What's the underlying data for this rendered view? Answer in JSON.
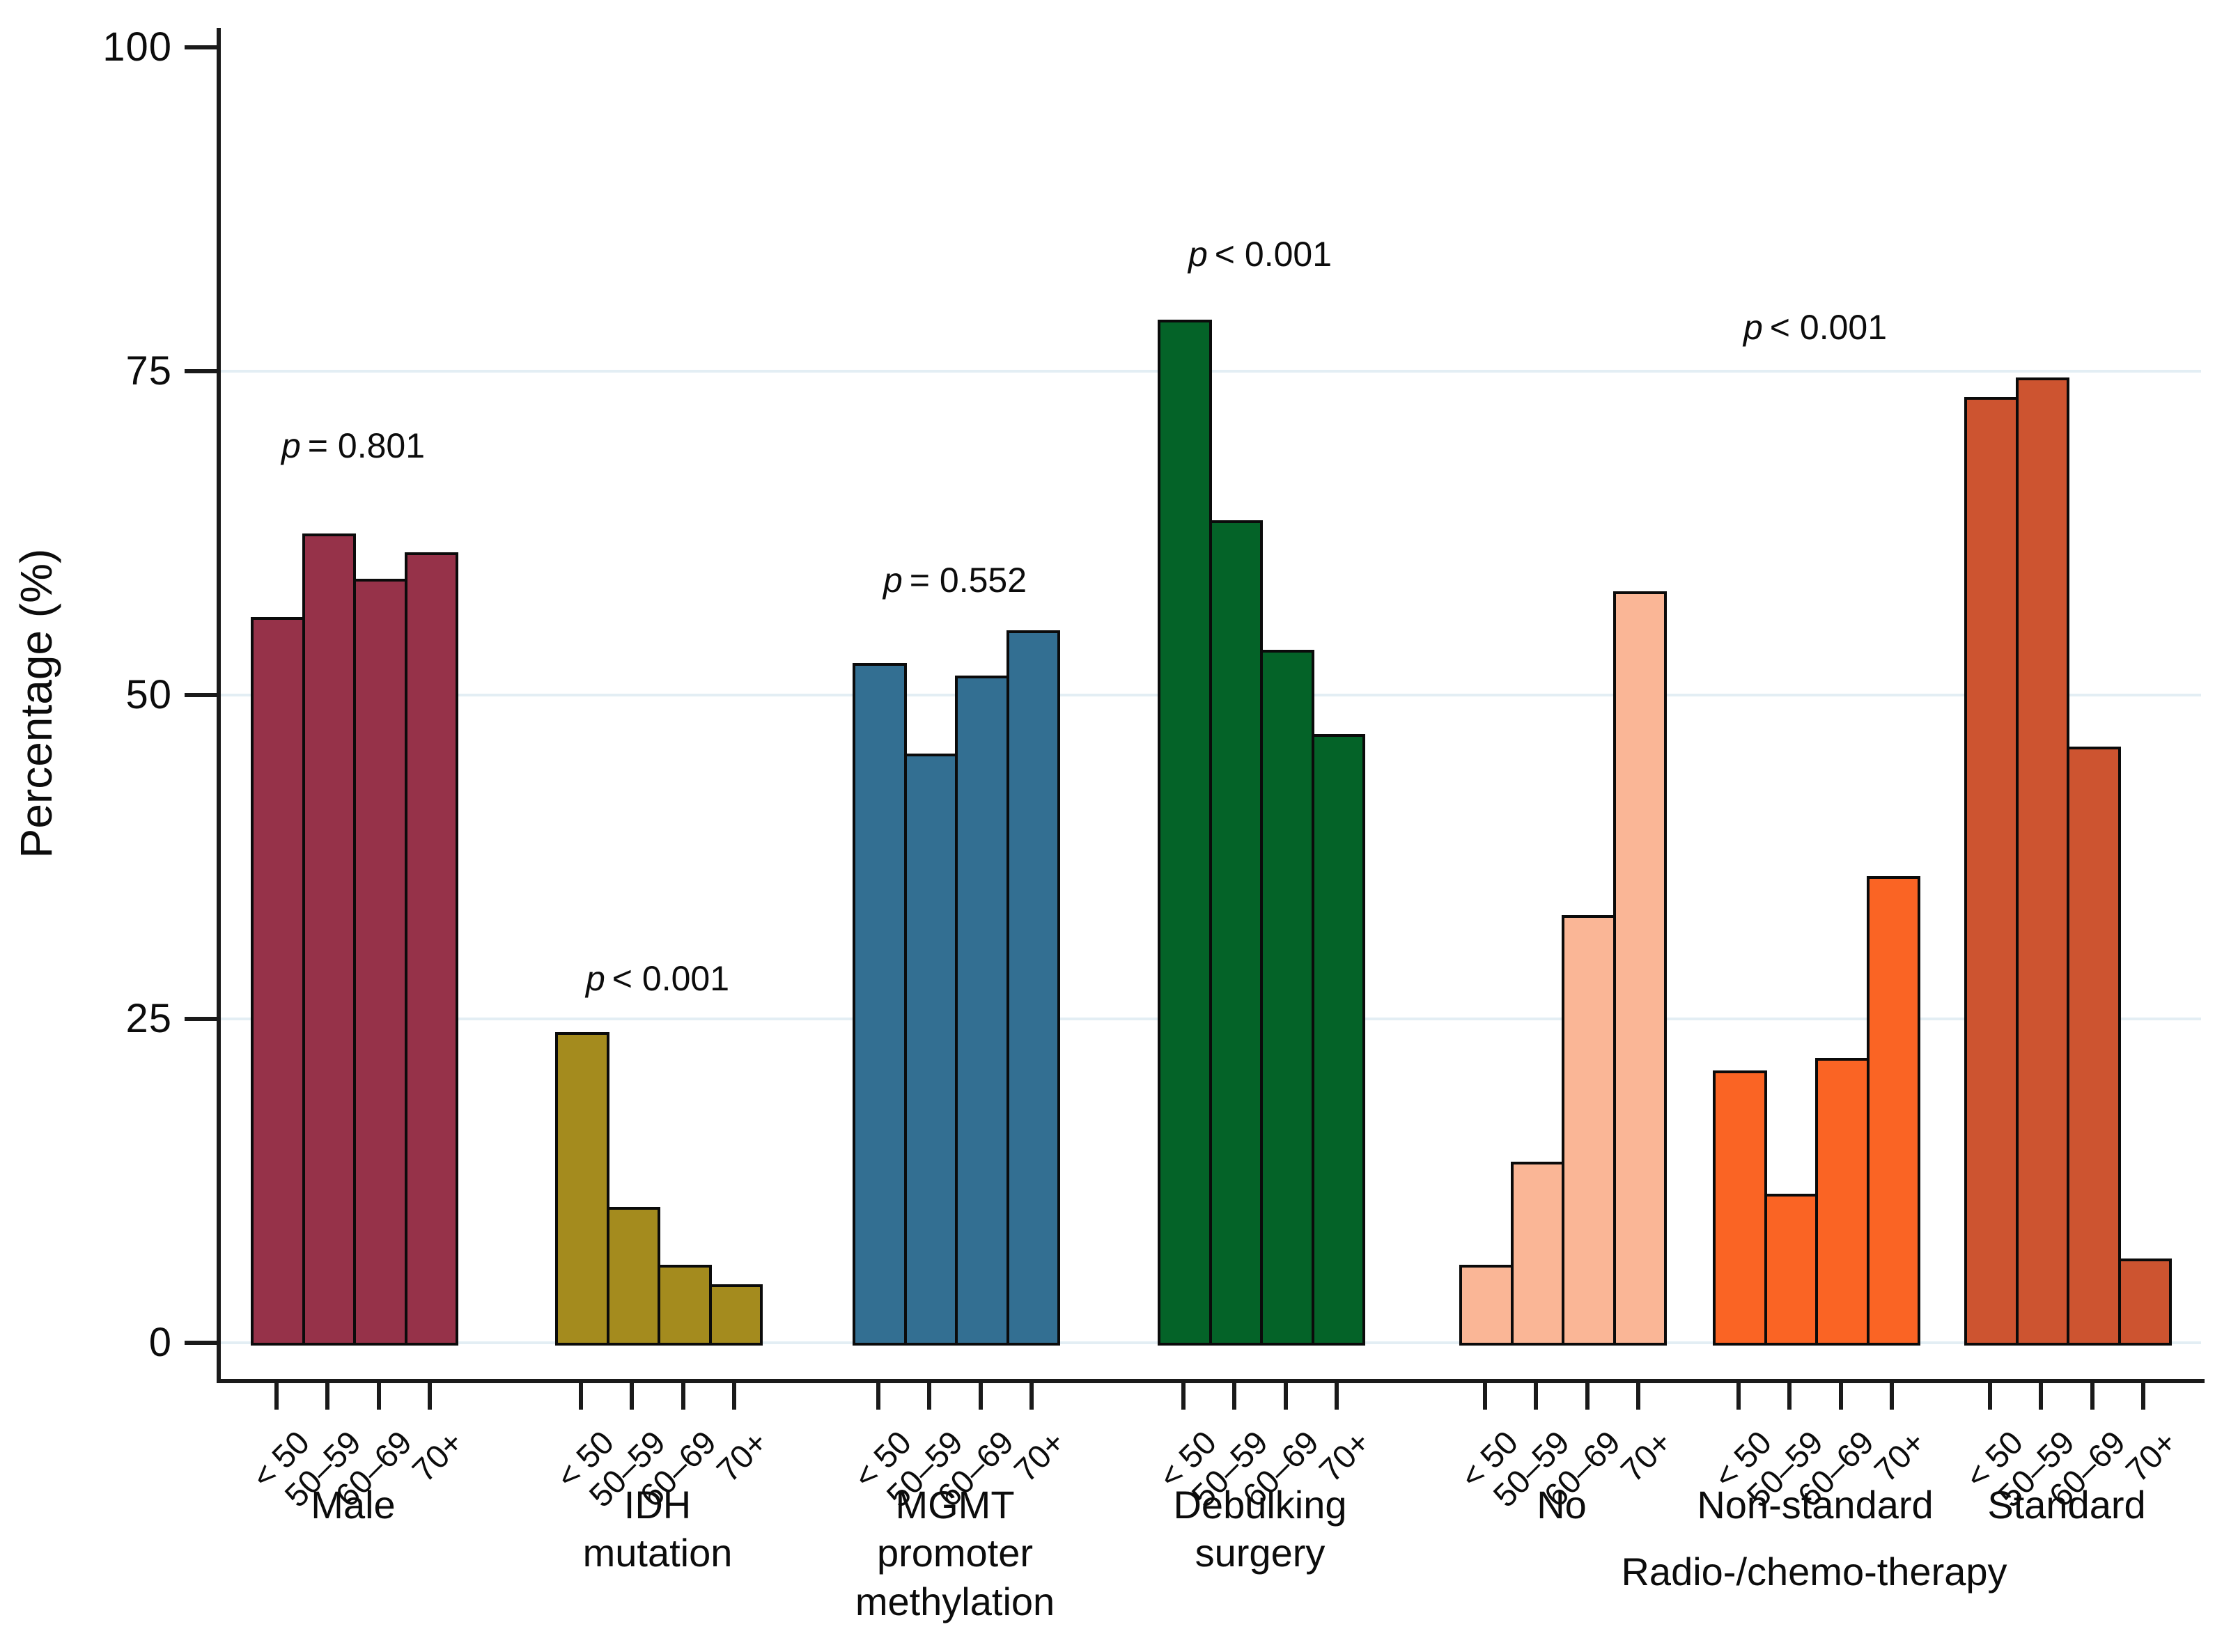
{
  "chart_data": {
    "type": "bar",
    "title": "",
    "ylabel": "Percentage (%)",
    "ylim": [
      0,
      100
    ],
    "yticks": [
      0,
      25,
      50,
      75,
      100
    ],
    "gridline_values": [
      0,
      25,
      50,
      75
    ],
    "grid": "horizontal light lines",
    "legend_position": "none",
    "age_categories": [
      "< 50",
      "50–59",
      "60–69",
      "70+"
    ],
    "shared_group_label": "Radio-/chemo-therapy",
    "groups": [
      {
        "label_lines": [
          "Male"
        ],
        "p_label": "p = 0.801",
        "color": "#963249",
        "values": [
          56,
          62.5,
          59,
          61
        ]
      },
      {
        "label_lines": [
          "IDH",
          "mutation"
        ],
        "p_label": "p < 0.001",
        "color": "#a48b1e",
        "values": [
          24,
          10.5,
          6,
          4.5
        ]
      },
      {
        "label_lines": [
          "MGMT",
          "promoter",
          "methylation"
        ],
        "p_label": "p = 0.552",
        "color": "#336f92",
        "values": [
          52.5,
          45.5,
          51.5,
          55
        ]
      },
      {
        "label_lines": [
          "Debulking",
          "surgery"
        ],
        "p_label": "p < 0.001",
        "color": "#046328",
        "values": [
          79,
          63.5,
          53.5,
          47
        ]
      },
      {
        "label_lines": [
          "No"
        ],
        "p_label": null,
        "color": "#fab696",
        "values": [
          6,
          14,
          33,
          58
        ]
      },
      {
        "label_lines": [
          "Non-standard"
        ],
        "p_label": "p < 0.001",
        "color": "#fa6424",
        "values": [
          21,
          11.5,
          22,
          36
        ]
      },
      {
        "label_lines": [
          "Standard"
        ],
        "p_label": null,
        "color": "#cd5430",
        "values": [
          73,
          74.5,
          46,
          6.5
        ]
      }
    ]
  }
}
